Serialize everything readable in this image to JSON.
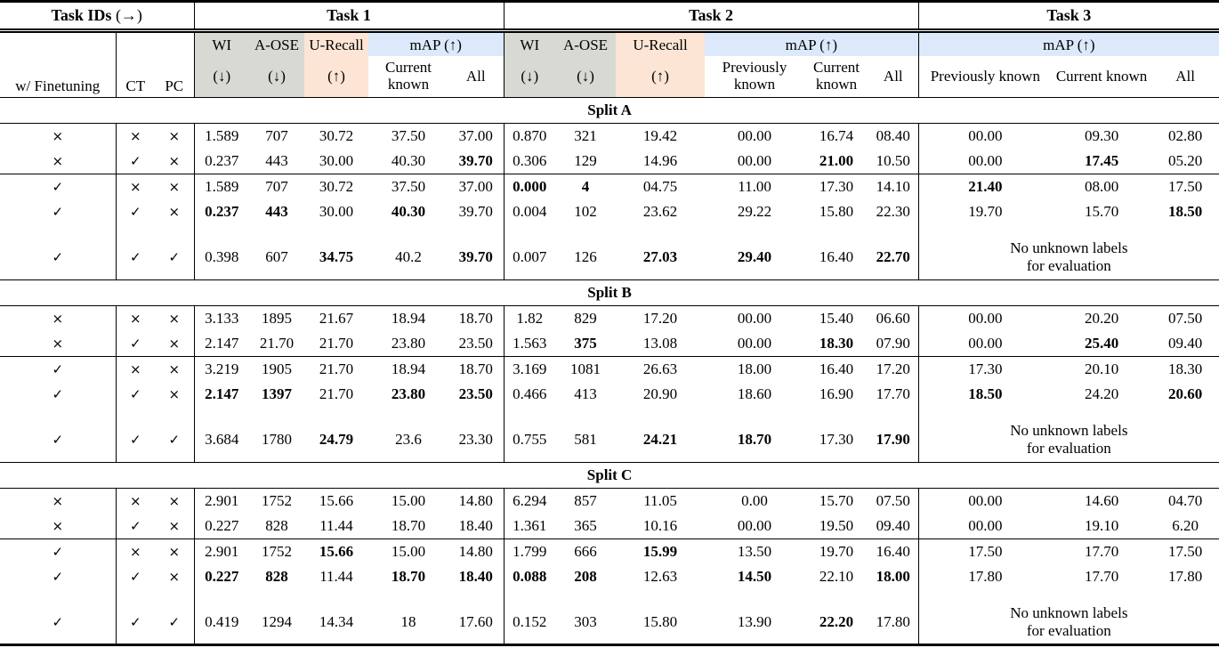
{
  "colors": {
    "gray_bg": "#d9d9d4",
    "peach_bg": "#fce5d5",
    "blue_bg": "#dce9fb",
    "rule": "#000000"
  },
  "header": {
    "task_ids_label": "Task IDs",
    "task_ids_arrow": "(→)",
    "tasks": [
      "Task 1",
      "Task 2",
      "Task 3"
    ],
    "finetuning_label": "w/ Finetuning",
    "ct_label": "CT",
    "pc_label": "PC",
    "metrics": {
      "wi": "WI",
      "aose": "A-OSE",
      "urecall": "U-Recall",
      "map": "mAP (↑)",
      "down": "(↓)",
      "up": "(↑)",
      "prev_known": "Previously known",
      "curr_known": "Current known",
      "all": "All"
    }
  },
  "marks": {
    "no": "×",
    "yes": "✓"
  },
  "sections": [
    {
      "label": "Split A",
      "groups": [
        [
          {
            "ft": "×",
            "ct": "×",
            "pc": "×",
            "t1": [
              "1.589",
              "707",
              "30.72",
              "37.50",
              "37.00"
            ],
            "t2": [
              "0.870",
              "321",
              "19.42",
              "00.00",
              "16.74",
              "08.40"
            ],
            "t3": [
              "00.00",
              "09.30",
              "02.80"
            ]
          },
          {
            "ft": "×",
            "ct": "✓",
            "pc": "×",
            "t1": [
              "0.237",
              "443",
              "30.00",
              "40.30",
              {
                "t": "39.70",
                "b": true
              }
            ],
            "t2": [
              "0.306",
              "129",
              "14.96",
              "00.00",
              {
                "t": "21.00",
                "b": true
              },
              "10.50"
            ],
            "t3": [
              "00.00",
              {
                "t": "17.45",
                "b": true
              },
              "05.20"
            ]
          }
        ],
        [
          {
            "ft": "✓",
            "ct": "×",
            "pc": "×",
            "t1": [
              "1.589",
              "707",
              "30.72",
              "37.50",
              "37.00"
            ],
            "t2": [
              {
                "t": "0.000",
                "b": true
              },
              {
                "t": "4",
                "b": true
              },
              "04.75",
              "11.00",
              "17.30",
              "14.10"
            ],
            "t3": [
              {
                "t": "21.40",
                "b": true
              },
              "08.00",
              "17.50"
            ]
          },
          {
            "ft": "✓",
            "ct": "✓",
            "pc": "×",
            "t1": [
              {
                "t": "0.237",
                "b": true
              },
              {
                "t": "443",
                "b": true
              },
              "30.00",
              {
                "t": "40.30",
                "b": true
              },
              "39.70"
            ],
            "t2": [
              "0.004",
              "102",
              "23.62",
              "29.22",
              "15.80",
              "22.30"
            ],
            "t3": [
              "19.70",
              "15.70",
              {
                "t": "18.50",
                "b": true
              }
            ]
          }
        ],
        [
          {
            "ft": "✓",
            "ct": "✓",
            "pc": "✓",
            "t1": [
              "0.398",
              "607",
              {
                "t": "34.75",
                "b": true
              },
              "40.2",
              {
                "t": "39.70",
                "b": true
              }
            ],
            "t2": [
              "0.007",
              "126",
              {
                "t": "27.03",
                "b": true
              },
              {
                "t": "29.40",
                "b": true
              },
              "16.40",
              {
                "t": "22.70",
                "b": true
              }
            ],
            "t3_note": [
              "No unknown labels",
              "for evaluation"
            ]
          }
        ]
      ]
    },
    {
      "label": "Split B",
      "groups": [
        [
          {
            "ft": "×",
            "ct": "×",
            "pc": "×",
            "t1": [
              "3.133",
              "1895",
              "21.67",
              "18.94",
              "18.70"
            ],
            "t2": [
              "1.82",
              "829",
              "17.20",
              "00.00",
              "15.40",
              "06.60"
            ],
            "t3": [
              "00.00",
              "20.20",
              "07.50"
            ]
          },
          {
            "ft": "×",
            "ct": "✓",
            "pc": "×",
            "t1": [
              "2.147",
              "21.70",
              "21.70",
              "23.80",
              "23.50"
            ],
            "t2": [
              "1.563",
              {
                "t": "375",
                "b": true
              },
              "13.08",
              "00.00",
              {
                "t": "18.30",
                "b": true
              },
              "07.90"
            ],
            "t3": [
              "00.00",
              {
                "t": "25.40",
                "b": true
              },
              "09.40"
            ]
          }
        ],
        [
          {
            "ft": "✓",
            "ct": "×",
            "pc": "×",
            "t1": [
              "3.219",
              "1905",
              "21.70",
              "18.94",
              "18.70"
            ],
            "t2": [
              "3.169",
              "1081",
              "26.63",
              "18.00",
              "16.40",
              "17.20"
            ],
            "t3": [
              "17.30",
              "20.10",
              "18.30"
            ]
          },
          {
            "ft": "✓",
            "ct": "✓",
            "pc": "×",
            "t1": [
              {
                "t": "2.147",
                "b": true
              },
              {
                "t": "1397",
                "b": true
              },
              "21.70",
              {
                "t": "23.80",
                "b": true
              },
              {
                "t": "23.50",
                "b": true
              }
            ],
            "t2": [
              "0.466",
              "413",
              "20.90",
              "18.60",
              "16.90",
              "17.70"
            ],
            "t3": [
              {
                "t": "18.50",
                "b": true
              },
              "24.20",
              {
                "t": "20.60",
                "b": true
              }
            ]
          }
        ],
        [
          {
            "ft": "✓",
            "ct": "✓",
            "pc": "✓",
            "t1": [
              "3.684",
              "1780",
              {
                "t": "24.79",
                "b": true
              },
              "23.6",
              "23.30"
            ],
            "t2": [
              "0.755",
              "581",
              {
                "t": "24.21",
                "b": true
              },
              {
                "t": "18.70",
                "b": true
              },
              "17.30",
              {
                "t": "17.90",
                "b": true
              }
            ],
            "t3_note": [
              "No unknown labels",
              "for evaluation"
            ]
          }
        ]
      ]
    },
    {
      "label": "Split C",
      "groups": [
        [
          {
            "ft": "×",
            "ct": "×",
            "pc": "×",
            "t1": [
              "2.901",
              "1752",
              "15.66",
              "15.00",
              "14.80"
            ],
            "t2": [
              "6.294",
              "857",
              "11.05",
              "0.00",
              "15.70",
              "07.50"
            ],
            "t3": [
              "00.00",
              "14.60",
              "04.70"
            ]
          },
          {
            "ft": "×",
            "ct": "✓",
            "pc": "×",
            "t1": [
              "0.227",
              "828",
              "11.44",
              "18.70",
              "18.40"
            ],
            "t2": [
              "1.361",
              "365",
              "10.16",
              "00.00",
              "19.50",
              "09.40"
            ],
            "t3": [
              "00.00",
              "19.10",
              "6.20"
            ]
          }
        ],
        [
          {
            "ft": "✓",
            "ct": "×",
            "pc": "×",
            "t1": [
              "2.901",
              "1752",
              {
                "t": "15.66",
                "b": true
              },
              "15.00",
              "14.80"
            ],
            "t2": [
              "1.799",
              "666",
              {
                "t": "15.99",
                "b": true
              },
              "13.50",
              "19.70",
              "16.40"
            ],
            "t3": [
              "17.50",
              "17.70",
              "17.50"
            ]
          },
          {
            "ft": "✓",
            "ct": "✓",
            "pc": "×",
            "t1": [
              {
                "t": "0.227",
                "b": true
              },
              {
                "t": "828",
                "b": true
              },
              "11.44",
              {
                "t": "18.70",
                "b": true
              },
              {
                "t": "18.40",
                "b": true
              }
            ],
            "t2": [
              {
                "t": "0.088",
                "b": true
              },
              {
                "t": "208",
                "b": true
              },
              "12.63",
              {
                "t": "14.50",
                "b": true
              },
              "22.10",
              {
                "t": "18.00",
                "b": true
              }
            ],
            "t3": [
              "17.80",
              "17.70",
              "17.80"
            ]
          }
        ],
        [
          {
            "ft": "✓",
            "ct": "✓",
            "pc": "✓",
            "t1": [
              "0.419",
              "1294",
              "14.34",
              "18",
              "17.60"
            ],
            "t2": [
              "0.152",
              "303",
              "15.80",
              "13.90",
              {
                "t": "22.20",
                "b": true
              },
              "17.80"
            ],
            "t3_note": [
              "No unknown labels",
              "for evaluation"
            ]
          }
        ]
      ]
    }
  ]
}
